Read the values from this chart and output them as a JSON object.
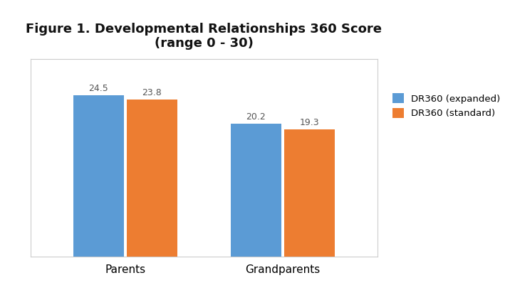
{
  "title_line1": "Figure 1. Developmental Relationships 360 Score",
  "title_line2": "(range 0 - 30)",
  "categories": [
    "Parents",
    "Grandparents"
  ],
  "series": [
    {
      "label": "DR360 (expanded)",
      "values": [
        24.5,
        20.2
      ],
      "color": "#5B9BD5"
    },
    {
      "label": "DR360 (standard)",
      "values": [
        23.8,
        19.3
      ],
      "color": "#ED7D31"
    }
  ],
  "ylim": [
    0,
    30
  ],
  "bar_width": 0.32,
  "label_fontsize": 9,
  "tick_fontsize": 11,
  "title_fontsize": 13,
  "legend_fontsize": 9.5,
  "background_color": "#FFFFFF",
  "plot_bg_color": "#FFFFFF",
  "border_color": "#AAAAAA",
  "value_label_color": "#555555"
}
